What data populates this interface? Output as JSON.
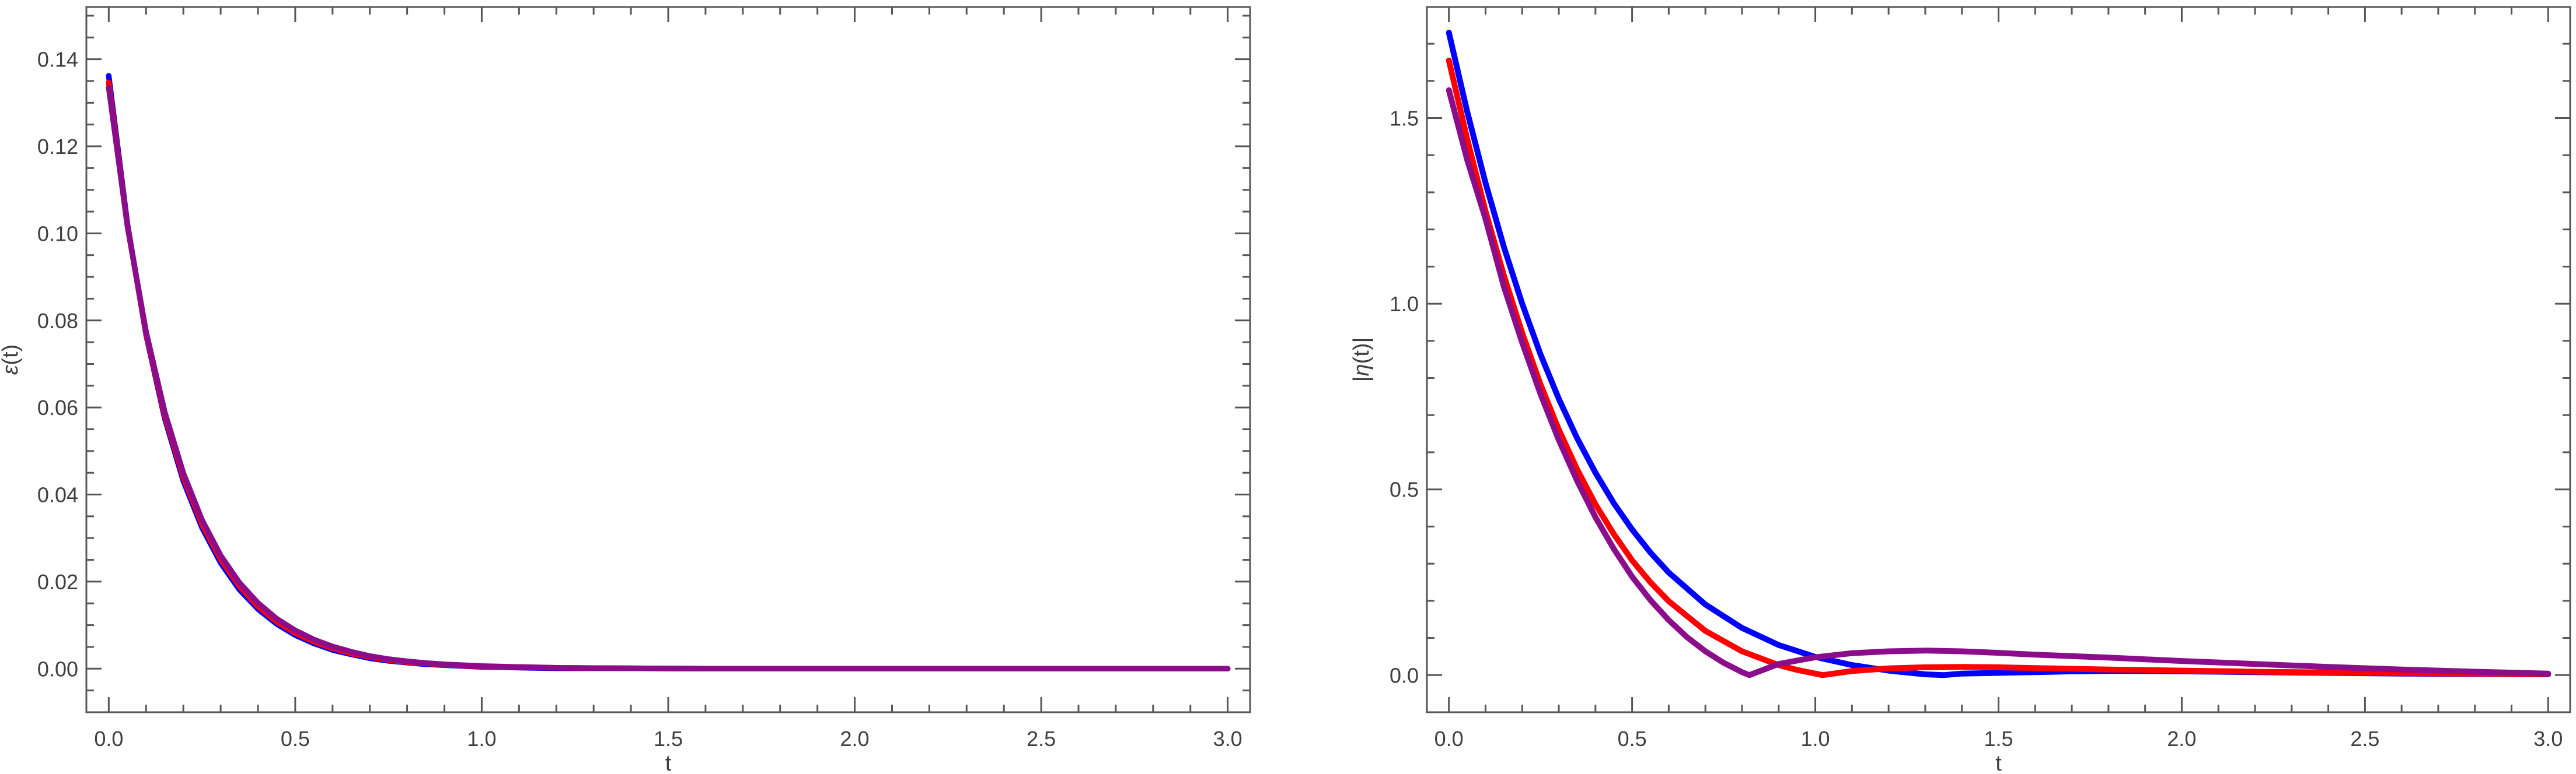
{
  "page": {
    "background": "#ffffff",
    "frame_color": "#565656",
    "tick_label_color": "#3f3f3f"
  },
  "chart_data": [
    {
      "type": "line",
      "title": "",
      "xlabel": "t",
      "ylabel": "ε(t)",
      "xlim": [
        -0.06,
        3.06
      ],
      "ylim": [
        -0.01,
        0.152
      ],
      "grid": false,
      "legend": null,
      "xticks": [
        0.0,
        0.5,
        1.0,
        1.5,
        2.0,
        2.5,
        3.0
      ],
      "xtick_labels": [
        "0.0",
        "0.5",
        "1.0",
        "1.5",
        "2.0",
        "2.5",
        "3.0"
      ],
      "yticks": [
        0.0,
        0.02,
        0.04,
        0.06,
        0.08,
        0.1,
        0.12,
        0.14
      ],
      "ytick_labels": [
        "0.00",
        "0.02",
        "0.04",
        "0.06",
        "0.08",
        "0.10",
        "0.12",
        "0.14"
      ],
      "x_minor_step": 0.1,
      "y_minor_step": 0.005,
      "series": [
        {
          "name": "epsilon-blue",
          "color": "#0000ff",
          "stroke_width": 9.5,
          "x": [
            0,
            0.05,
            0.1,
            0.15,
            0.2,
            0.25,
            0.3,
            0.35,
            0.4,
            0.45,
            0.5,
            0.55,
            0.6,
            0.65,
            0.7,
            0.75,
            0.8,
            0.85,
            0.9,
            0.95,
            1.0,
            1.2,
            1.4,
            1.6,
            1.8,
            2.0,
            2.5,
            3.0
          ],
          "y": [
            0.1362,
            0.1022,
            0.0767,
            0.0575,
            0.0431,
            0.0324,
            0.0243,
            0.0182,
            0.0137,
            0.0103,
            0.0077,
            0.0058,
            0.0043,
            0.0033,
            0.0024,
            0.0018,
            0.0014,
            0.001,
            0.0008,
            0.0006,
            0.0004,
            0.0001,
            0.0001,
            0,
            0,
            0,
            0,
            0
          ]
        },
        {
          "name": "epsilon-red",
          "color": "#ff0000",
          "stroke_width": 9.5,
          "x": [
            0,
            0.05,
            0.1,
            0.15,
            0.2,
            0.25,
            0.3,
            0.35,
            0.4,
            0.45,
            0.5,
            0.55,
            0.6,
            0.65,
            0.7,
            0.75,
            0.8,
            0.85,
            0.9,
            0.95,
            1.0,
            1.2,
            1.4,
            1.6,
            1.8,
            2.0,
            2.5,
            3.0
          ],
          "y": [
            0.1347,
            0.1018,
            0.077,
            0.0582,
            0.044,
            0.0332,
            0.0251,
            0.019,
            0.0143,
            0.0108,
            0.0082,
            0.0062,
            0.0047,
            0.0035,
            0.0027,
            0.002,
            0.0015,
            0.0012,
            0.0009,
            0.0007,
            0.0005,
            0.0002,
            0.0001,
            0,
            0,
            0,
            0,
            0
          ]
        },
        {
          "name": "epsilon-purple",
          "color": "#8b0d8b",
          "stroke_width": 9.5,
          "x": [
            0,
            0.05,
            0.1,
            0.15,
            0.2,
            0.25,
            0.3,
            0.35,
            0.4,
            0.45,
            0.5,
            0.55,
            0.6,
            0.65,
            0.7,
            0.75,
            0.8,
            0.85,
            0.9,
            0.95,
            1.0,
            1.2,
            1.4,
            1.6,
            1.8,
            2.0,
            2.5,
            3.0
          ],
          "y": [
            0.1335,
            0.1017,
            0.0774,
            0.059,
            0.0449,
            0.0342,
            0.026,
            0.0198,
            0.0151,
            0.0115,
            0.0088,
            0.0067,
            0.0051,
            0.0039,
            0.0029,
            0.0022,
            0.0017,
            0.0013,
            0.001,
            0.0008,
            0.0006,
            0.0002,
            0.0001,
            0,
            0,
            0,
            0,
            0
          ]
        }
      ]
    },
    {
      "type": "line",
      "title": "",
      "xlabel": "t",
      "ylabel": "|η(t)|",
      "xlim": [
        -0.06,
        3.06
      ],
      "ylim": [
        -0.1,
        1.799
      ],
      "grid": false,
      "legend": null,
      "xticks": [
        0.0,
        0.5,
        1.0,
        1.5,
        2.0,
        2.5,
        3.0
      ],
      "xtick_labels": [
        "0.0",
        "0.5",
        "1.0",
        "1.5",
        "2.0",
        "2.5",
        "3.0"
      ],
      "yticks": [
        0.0,
        0.5,
        1.0,
        1.5
      ],
      "ytick_labels": [
        "0.0",
        "0.5",
        "1.0",
        "1.5"
      ],
      "x_minor_step": 0.1,
      "y_minor_step": 0.1,
      "series": [
        {
          "name": "eta-blue",
          "color": "#0000ff",
          "stroke_width": 10,
          "x": [
            0,
            0.05,
            0.1,
            0.15,
            0.2,
            0.25,
            0.3,
            0.35,
            0.4,
            0.45,
            0.5,
            0.55,
            0.6,
            0.7,
            0.8,
            0.9,
            1.0,
            1.1,
            1.2,
            1.3,
            1.35,
            1.4,
            1.5,
            1.6,
            1.7,
            1.8,
            1.9,
            2.0,
            2.2,
            2.4,
            2.6,
            2.8,
            3.0
          ],
          "y": [
            1.73,
            1.517,
            1.325,
            1.153,
            1.0,
            0.864,
            0.744,
            0.638,
            0.545,
            0.463,
            0.392,
            0.33,
            0.276,
            0.19,
            0.127,
            0.081,
            0.049,
            0.027,
            0.012,
            0.002,
            0.0,
            0.004,
            0.006,
            0.008,
            0.01,
            0.011,
            0.011,
            0.01,
            0.008,
            0.006,
            0.004,
            0.003,
            0.002
          ]
        },
        {
          "name": "eta-red",
          "color": "#ff0000",
          "stroke_width": 10,
          "x": [
            0,
            0.05,
            0.1,
            0.15,
            0.2,
            0.25,
            0.3,
            0.35,
            0.4,
            0.45,
            0.5,
            0.55,
            0.6,
            0.7,
            0.8,
            0.9,
            0.95,
            1.02,
            1.1,
            1.2,
            1.3,
            1.4,
            1.5,
            1.6,
            1.8,
            2.0,
            2.2,
            2.4,
            2.6,
            2.8,
            3.0
          ],
          "y": [
            1.655,
            1.443,
            1.249,
            1.076,
            0.921,
            0.783,
            0.661,
            0.554,
            0.46,
            0.38,
            0.309,
            0.25,
            0.199,
            0.119,
            0.064,
            0.027,
            0.014,
            0.0,
            0.011,
            0.018,
            0.021,
            0.022,
            0.021,
            0.019,
            0.015,
            0.012,
            0.009,
            0.007,
            0.005,
            0.004,
            0.003
          ]
        },
        {
          "name": "eta-purple",
          "color": "#8b0d8b",
          "stroke_width": 10,
          "x": [
            0,
            0.05,
            0.1,
            0.15,
            0.2,
            0.25,
            0.3,
            0.35,
            0.4,
            0.45,
            0.5,
            0.55,
            0.6,
            0.65,
            0.7,
            0.75,
            0.8,
            0.82,
            0.9,
            1.0,
            1.1,
            1.2,
            1.3,
            1.4,
            1.5,
            1.6,
            1.8,
            2.0,
            2.2,
            2.4,
            2.6,
            2.8,
            3.0
          ],
          "y": [
            1.575,
            1.387,
            1.228,
            1.046,
            0.895,
            0.757,
            0.633,
            0.523,
            0.425,
            0.34,
            0.265,
            0.202,
            0.148,
            0.102,
            0.064,
            0.033,
            0.008,
            0.0,
            0.03,
            0.048,
            0.059,
            0.064,
            0.066,
            0.064,
            0.06,
            0.055,
            0.047,
            0.038,
            0.03,
            0.022,
            0.015,
            0.009,
            0.004
          ]
        }
      ]
    }
  ]
}
